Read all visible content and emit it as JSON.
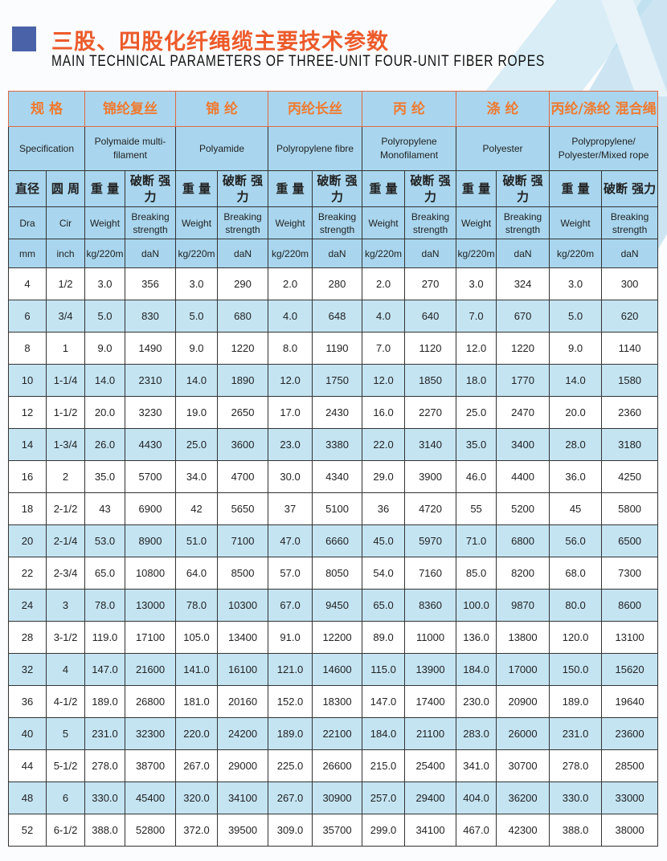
{
  "title_cn": "三股、四股化纤绳缆主要技术参数",
  "title_en": "MAIN TECHNICAL PARAMETERS OF THREE-UNIT FOUR-UNIT FIBER ROPES",
  "colors": {
    "accent_title": "#ec5a2a",
    "header_bg": "#a9d6ee",
    "shaded_row": "#c4e4f2",
    "square": "#4a63a8"
  },
  "header": {
    "cn": [
      "规 格",
      "锦纶复丝",
      "锦 纶",
      "丙纶长丝",
      "丙 纶",
      "涤 纶",
      "丙纶/涤纶 混合绳"
    ],
    "en": [
      "Specification",
      "Polymaide multi-filament",
      "Polyamide",
      "Polyropylene fibre",
      "Polyropylene Monofilament",
      "Polyester",
      "Polypropylene/ Polyester/Mixed rope"
    ],
    "cn_sub": {
      "dia": "直径",
      "cir": "圆 周",
      "weight": "重 量",
      "breaking": "破断 强力"
    },
    "en_sub": {
      "dia": "Dra",
      "cir": "Cir",
      "weight": "Weight",
      "breaking": "Breaking strength"
    },
    "units": {
      "dia": "mm",
      "cir": "inch",
      "weight": "kg/220m",
      "breaking": "daN"
    }
  },
  "rows": [
    {
      "shaded": false,
      "v": [
        "4",
        "1/2",
        "3.0",
        "356",
        "3.0",
        "290",
        "2.0",
        "280",
        "2.0",
        "270",
        "3.0",
        "324",
        "3.0",
        "300"
      ]
    },
    {
      "shaded": true,
      "v": [
        "6",
        "3/4",
        "5.0",
        "830",
        "5.0",
        "680",
        "4.0",
        "648",
        "4.0",
        "640",
        "7.0",
        "670",
        "5.0",
        "620"
      ]
    },
    {
      "shaded": false,
      "v": [
        "8",
        "1",
        "9.0",
        "1490",
        "9.0",
        "1220",
        "8.0",
        "1190",
        "7.0",
        "1120",
        "12.0",
        "1220",
        "9.0",
        "1140"
      ]
    },
    {
      "shaded": true,
      "v": [
        "10",
        "1-1/4",
        "14.0",
        "2310",
        "14.0",
        "1890",
        "12.0",
        "1750",
        "12.0",
        "1850",
        "18.0",
        "1770",
        "14.0",
        "1580"
      ]
    },
    {
      "shaded": false,
      "v": [
        "12",
        "1-1/2",
        "20.0",
        "3230",
        "19.0",
        "2650",
        "17.0",
        "2430",
        "16.0",
        "2270",
        "25.0",
        "2470",
        "20.0",
        "2360"
      ]
    },
    {
      "shaded": true,
      "v": [
        "14",
        "1-3/4",
        "26.0",
        "4430",
        "25.0",
        "3600",
        "23.0",
        "3380",
        "22.0",
        "3140",
        "35.0",
        "3400",
        "28.0",
        "3180"
      ]
    },
    {
      "shaded": false,
      "v": [
        "16",
        "2",
        "35.0",
        "5700",
        "34.0",
        "4700",
        "30.0",
        "4340",
        "29.0",
        "3900",
        "46.0",
        "4400",
        "36.0",
        "4250"
      ]
    },
    {
      "shaded": false,
      "v": [
        "18",
        "2-1/2",
        "43",
        "6900",
        "42",
        "5650",
        "37",
        "5100",
        "36",
        "4720",
        "55",
        "5200",
        "45",
        "5800"
      ]
    },
    {
      "shaded": true,
      "v": [
        "20",
        "2-1/4",
        "53.0",
        "8900",
        "51.0",
        "7100",
        "47.0",
        "6660",
        "45.0",
        "5970",
        "71.0",
        "6800",
        "56.0",
        "6500"
      ]
    },
    {
      "shaded": false,
      "v": [
        "22",
        "2-3/4",
        "65.0",
        "10800",
        "64.0",
        "8500",
        "57.0",
        "8050",
        "54.0",
        "7160",
        "85.0",
        "8200",
        "68.0",
        "7300"
      ]
    },
    {
      "shaded": true,
      "v": [
        "24",
        "3",
        "78.0",
        "13000",
        "78.0",
        "10300",
        "67.0",
        "9450",
        "65.0",
        "8360",
        "100.0",
        "9870",
        "80.0",
        "8600"
      ]
    },
    {
      "shaded": false,
      "v": [
        "28",
        "3-1/2",
        "119.0",
        "17100",
        "105.0",
        "13400",
        "91.0",
        "12200",
        "89.0",
        "11000",
        "136.0",
        "13800",
        "120.0",
        "13100"
      ]
    },
    {
      "shaded": true,
      "v": [
        "32",
        "4",
        "147.0",
        "21600",
        "141.0",
        "16100",
        "121.0",
        "14600",
        "115.0",
        "13900",
        "184.0",
        "17000",
        "150.0",
        "15620"
      ]
    },
    {
      "shaded": false,
      "v": [
        "36",
        "4-1/2",
        "189.0",
        "26800",
        "181.0",
        "20160",
        "152.0",
        "18300",
        "147.0",
        "17400",
        "230.0",
        "20900",
        "189.0",
        "19640"
      ]
    },
    {
      "shaded": true,
      "v": [
        "40",
        "5",
        "231.0",
        "32300",
        "220.0",
        "24200",
        "189.0",
        "22100",
        "184.0",
        "21100",
        "283.0",
        "26000",
        "231.0",
        "23600"
      ]
    },
    {
      "shaded": false,
      "v": [
        "44",
        "5-1/2",
        "278.0",
        "38700",
        "267.0",
        "29000",
        "225.0",
        "26600",
        "215.0",
        "25400",
        "341.0",
        "30700",
        "278.0",
        "28500"
      ]
    },
    {
      "shaded": true,
      "v": [
        "48",
        "6",
        "330.0",
        "45400",
        "320.0",
        "34100",
        "267.0",
        "30900",
        "257.0",
        "29400",
        "404.0",
        "36200",
        "330.0",
        "33000"
      ]
    },
    {
      "shaded": false,
      "v": [
        "52",
        "6-1/2",
        "388.0",
        "52800",
        "372.0",
        "39500",
        "309.0",
        "35700",
        "299.0",
        "34100",
        "467.0",
        "42300",
        "388.0",
        "38000"
      ]
    }
  ]
}
